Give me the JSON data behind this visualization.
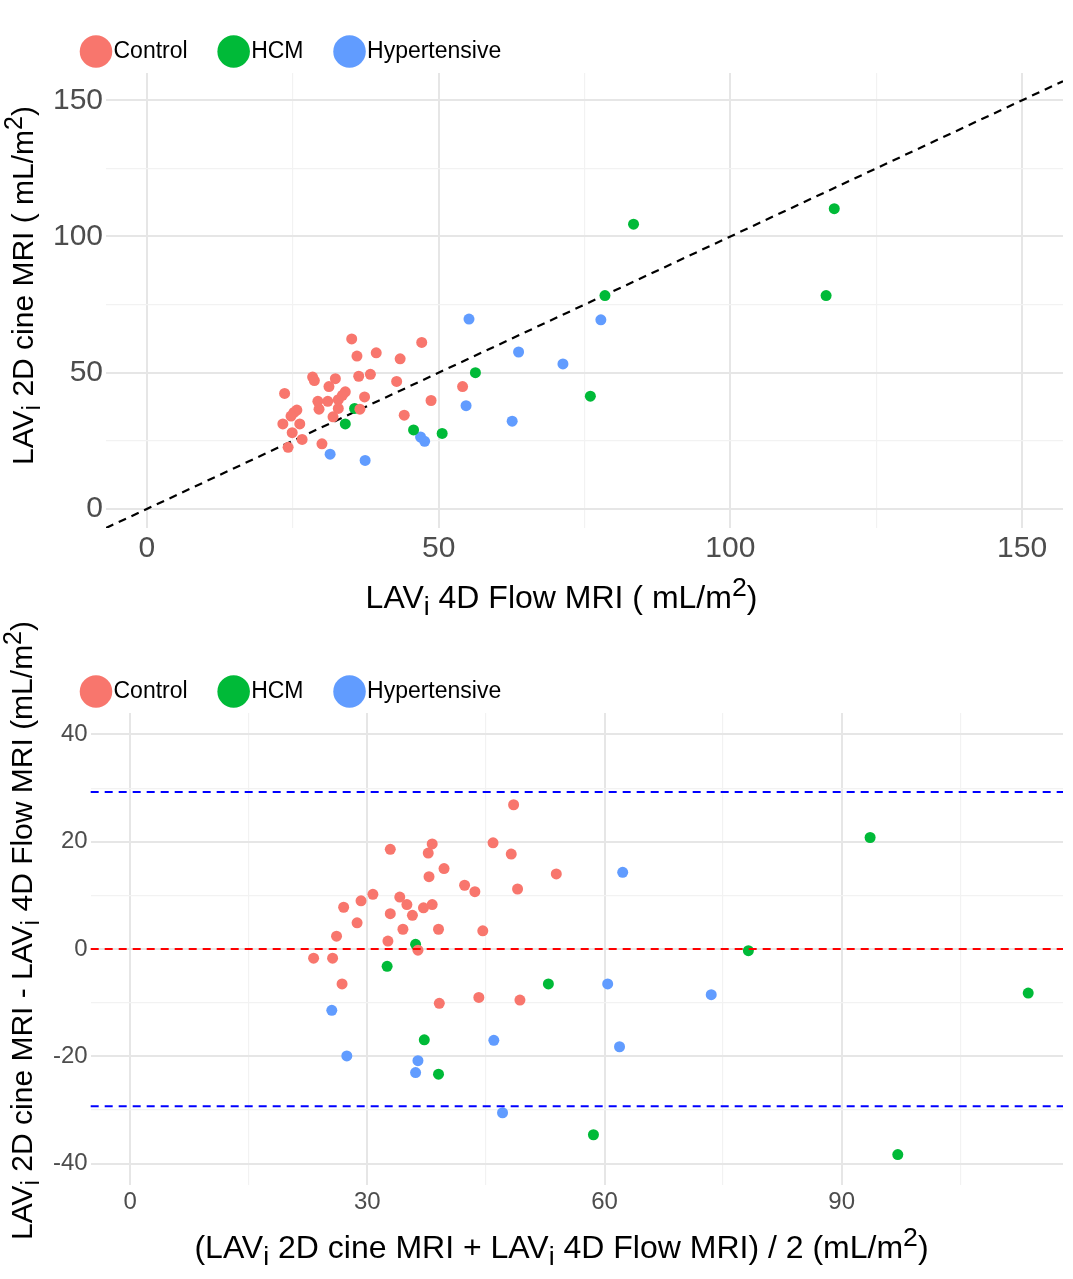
{
  "chart_data": [
    {
      "type": "scatter",
      "xlabel": "LAV$_{i}$ 4D Flow MRI ( mL/m$^{2}$)",
      "ylabel": "LAV$_{i}$ 2D cine MRI ( mL/m$^{2}$)",
      "xlim": [
        -7,
        157
      ],
      "ylim": [
        -7,
        160
      ],
      "xticks": [
        0,
        {
          "value": 25,
          "label": null
        },
        50,
        {
          "value": 75,
          "label": null
        },
        100,
        {
          "value": 125,
          "label": null
        },
        150
      ],
      "yticks": [
        0,
        {
          "value": 25,
          "label": null
        },
        50,
        {
          "value": 75,
          "label": null
        },
        100,
        {
          "value": 125,
          "label": null
        },
        150
      ],
      "grid": true,
      "legend": "top left",
      "marker": "circle",
      "series": [
        {
          "name": "Control",
          "color": "#f8766d",
          "x": [
            35.1,
            47.1,
            39.3,
            36.0,
            43.4,
            28.4,
            28.7,
            32.3,
            36.3,
            38.3,
            42.8,
            54.1,
            34.0,
            31.2,
            23.6,
            48.7,
            29.3,
            31.0,
            32.8,
            33.5,
            37.3,
            25.7,
            25.2,
            29.5,
            32.8,
            36.5,
            24.7,
            44.1,
            31.9,
            23.3,
            26.2,
            24.9,
            26.6,
            30.0,
            24.2
          ],
          "values": [
            62.4,
            61.1,
            57.3,
            56.1,
            55.1,
            48.4,
            47.1,
            47.8,
            48.7,
            49.4,
            46.8,
            44.9,
            43.0,
            44.9,
            42.4,
            39.8,
            39.5,
            39.5,
            40.1,
            41.7,
            41.1,
            36.3,
            35.4,
            36.6,
            36.9,
            36.6,
            34.1,
            34.4,
            33.8,
            31.2,
            31.2,
            28.0,
            25.5,
            23.9,
            22.6
          ]
        },
        {
          "name": "HCM",
          "color": "#00ba38",
          "x": [
            83.4,
            117.8,
            78.5,
            116.4,
            56.3,
            76.0,
            35.6,
            34.0,
            45.7,
            50.6
          ],
          "values": [
            104.5,
            110.2,
            78.3,
            78.3,
            50.0,
            41.4,
            36.9,
            31.2,
            29.0,
            27.7
          ]
        },
        {
          "name": "Hypertensive",
          "color": "#619cff",
          "x": [
            55.2,
            77.8,
            63.7,
            71.3,
            54.7,
            62.6,
            46.9,
            47.6,
            31.4,
            37.4
          ],
          "values": [
            69.7,
            69.4,
            57.6,
            53.2,
            37.9,
            32.2,
            26.4,
            24.8,
            20.1,
            17.8
          ]
        },
        {
          "type": "line",
          "color": "#000000",
          "line_style": "dashed",
          "marker": "none",
          "x": [
            -7,
            157
          ],
          "values": [
            -7,
            157
          ]
        }
      ]
    },
    {
      "type": "scatter",
      "xlabel": "(LAV$_{i}$ 2D cine MRI + LAV$_{i}$ 4D Flow MRI) / 2 (mL/m$^{2}$)",
      "ylabel": "LAV$_{i}$ 2D cine MRI - LAV$_{i}$ 4D Flow MRI (mL/m$^{2}$)",
      "xlim": [
        -5,
        118
      ],
      "ylim": [
        -44,
        44
      ],
      "xticks": [
        0,
        {
          "value": 15,
          "label": null
        },
        30,
        {
          "value": 45,
          "label": null
        },
        60,
        {
          "value": 75,
          "label": null
        },
        90,
        {
          "value": 105,
          "label": null
        }
      ],
      "yticks": [
        -40,
        {
          "value": -30,
          "label": null
        },
        -20,
        {
          "value": -10,
          "label": null
        },
        0,
        {
          "value": 10,
          "label": null
        },
        20,
        {
          "value": 30,
          "label": null
        },
        40
      ],
      "grid": true,
      "legend": "top left",
      "marker": "circle",
      "ref_lines": [
        {
          "axis": "y",
          "value": 0,
          "color": "#ff0000",
          "line_style": "dashed"
        },
        {
          "axis": "y",
          "value": 29.3,
          "color": "#0000ff",
          "line_style": "dashed"
        },
        {
          "axis": "y",
          "value": -29.3,
          "color": "#0000ff",
          "line_style": "dashed"
        }
      ],
      "series": [
        {
          "name": "Control",
          "color": "#f8766d",
          "x": [
            48.5,
            32.9,
            38.2,
            37.7,
            45.9,
            48.2,
            39.7,
            53.9,
            37.8,
            42.3,
            43.6,
            49.0,
            30.7,
            34.1,
            29.2,
            35.0,
            38.2,
            27.0,
            37.1,
            35.7,
            32.9,
            28.7,
            34.5,
            39.0,
            44.6,
            26.1,
            32.6,
            36.4,
            23.2,
            25.6,
            26.8,
            39.1,
            44.1,
            49.3
          ],
          "values": [
            26.9,
            18.6,
            19.6,
            17.9,
            19.8,
            17.7,
            15.0,
            14.0,
            13.5,
            11.9,
            10.7,
            11.2,
            10.2,
            9.7,
            9.0,
            8.3,
            8.3,
            7.8,
            7.7,
            6.3,
            6.6,
            4.9,
            3.7,
            3.7,
            3.4,
            2.4,
            1.5,
            -0.2,
            -1.7,
            -1.7,
            -6.5,
            -10.1,
            -9.0,
            -9.5
          ]
        },
        {
          "name": "HCM",
          "color": "#00ba38",
          "x": [
            93.6,
            36.1,
            32.5,
            78.2,
            52.9,
            113.6,
            37.2,
            39.0,
            58.6,
            97.1
          ],
          "values": [
            20.8,
            0.9,
            -3.2,
            -0.3,
            -6.5,
            -8.2,
            -16.9,
            -23.3,
            -34.6,
            -38.3
          ]
        },
        {
          "name": "Hypertensive",
          "color": "#619cff",
          "x": [
            62.3,
            60.4,
            73.5,
            25.5,
            46.0,
            61.9,
            27.4,
            36.4,
            36.1,
            47.1
          ],
          "values": [
            14.3,
            -6.5,
            -8.5,
            -11.4,
            -17.0,
            -18.2,
            -19.9,
            -20.8,
            -23.0,
            -30.5
          ]
        }
      ]
    }
  ]
}
